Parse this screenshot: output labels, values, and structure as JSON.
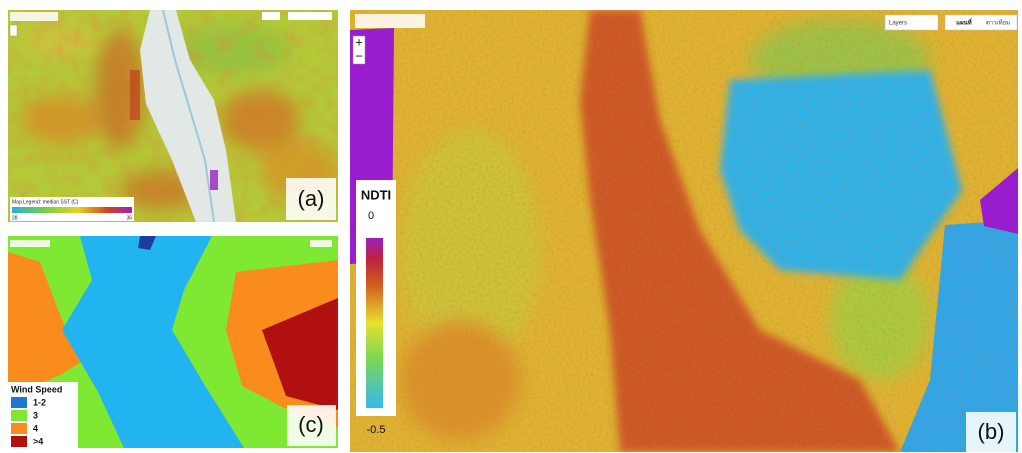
{
  "panels": [
    {
      "label": "(a)",
      "legend": {
        "title": "Map Legend: median SST (C)",
        "min": "28",
        "max": "36"
      }
    },
    {
      "label": "(b)",
      "controls": {
        "layers": "Layers",
        "map": "แผนที่",
        "satellite": "ดาวเทียม"
      },
      "legend": {
        "title": "NDTI",
        "max": "0",
        "min": "-0.5"
      }
    },
    {
      "label": "(c)",
      "legend": {
        "title": "Wind Speed",
        "items": [
          "1-2",
          "3",
          "4",
          ">4"
        ]
      }
    }
  ]
}
